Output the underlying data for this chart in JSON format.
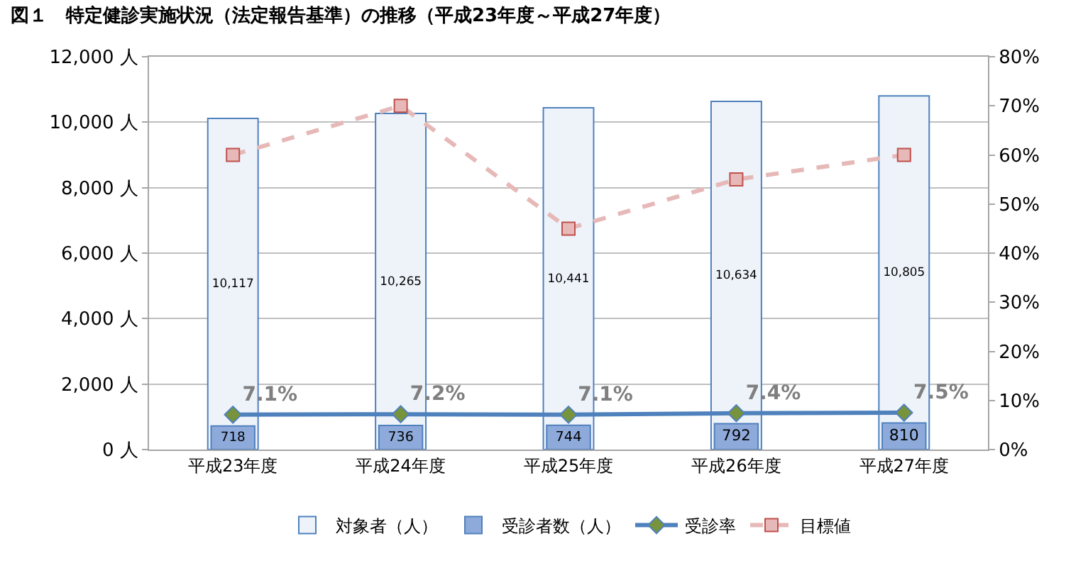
{
  "chart_data": {
    "type": "bar",
    "title": "図１　特定健診実施状況（法定報告基準）の推移（平成23年度～平成27年度）",
    "categories": [
      "平成23年度",
      "平成24年度",
      "平成25年度",
      "平成26年度",
      "平成27年度"
    ],
    "series": [
      {
        "name": "対象者（人）",
        "color": "#eef3fa",
        "values": [
          10117,
          10265,
          10441,
          10634,
          10805
        ],
        "value_labels": [
          "10,117",
          "10,265",
          "10,441",
          "10,634",
          "10,805"
        ]
      },
      {
        "name": "受診者数（人）",
        "color": "#8eaadb",
        "values": [
          718,
          736,
          744,
          792,
          810
        ],
        "value_labels": [
          "718",
          "736",
          "744",
          "792",
          "810"
        ]
      },
      {
        "name": "受診率",
        "type": "line",
        "axis": "y2",
        "color": "#4f81bd",
        "marker": "diamond",
        "line_style": "solid",
        "values": [
          7.1,
          7.2,
          7.1,
          7.4,
          7.5
        ],
        "value_labels": [
          "7.1%",
          "7.2%",
          "7.1%",
          "7.4%",
          "7.5%"
        ]
      },
      {
        "name": "目標値",
        "type": "line",
        "axis": "y2",
        "color": "#e6b9b8",
        "marker": "square",
        "line_style": "dashed",
        "values": [
          60,
          70,
          45,
          55,
          60
        ]
      }
    ],
    "ylim": [
      0,
      12000
    ],
    "yticks": [
      {
        "value": 0,
        "label": "0 人"
      },
      {
        "value": 2000,
        "label": "2,000 人"
      },
      {
        "value": 4000,
        "label": "4,000 人"
      },
      {
        "value": 6000,
        "label": "6,000 人"
      },
      {
        "value": 8000,
        "label": "8,000 人"
      },
      {
        "value": 10000,
        "label": "10,000 人"
      },
      {
        "value": 12000,
        "label": "12,000 人"
      }
    ],
    "y2lim": [
      0,
      80
    ],
    "y2ticks": [
      {
        "value": 0,
        "label": "0%"
      },
      {
        "value": 10,
        "label": "10%"
      },
      {
        "value": 20,
        "label": "20%"
      },
      {
        "value": 30,
        "label": "30%"
      },
      {
        "value": 40,
        "label": "40%"
      },
      {
        "value": 50,
        "label": "50%"
      },
      {
        "value": 60,
        "label": "60%"
      },
      {
        "value": 70,
        "label": "70%"
      },
      {
        "value": 80,
        "label": "80%"
      }
    ],
    "grid": "y",
    "legend": "bottom"
  }
}
